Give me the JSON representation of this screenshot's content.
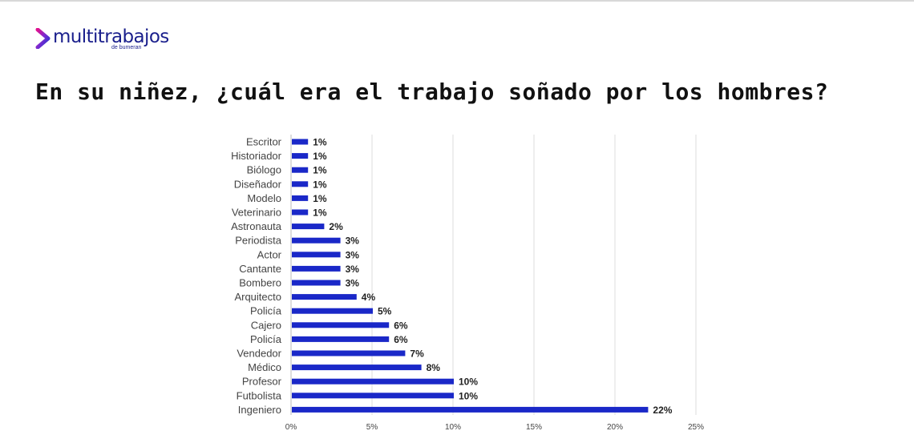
{
  "brand": {
    "name": "multitrabajos",
    "subtitle": "de bumeran",
    "color": "#1a1f8c",
    "accent": "#e0118f"
  },
  "page": {
    "title": "En su niñez, ¿cuál era el trabajo soñado por los hombres?"
  },
  "chart_data": {
    "type": "bar",
    "orientation": "horizontal",
    "title": "",
    "xlabel": "",
    "ylabel": "",
    "categories": [
      "Escritor",
      "Historiador",
      "Biólogo",
      "Diseñador",
      "Modelo",
      "Veterinario",
      "Astronauta",
      "Periodista",
      "Actor",
      "Cantante",
      "Bombero",
      "Arquitecto",
      "Policía",
      "Cajero",
      "Policía",
      "Vendedor",
      "Médico",
      "Profesor",
      "Futbolista",
      "Ingeniero"
    ],
    "values": [
      1,
      1,
      1,
      1,
      1,
      1,
      2,
      3,
      3,
      3,
      3,
      4,
      5,
      6,
      6,
      7,
      8,
      10,
      10,
      22
    ],
    "value_labels": [
      "1%",
      "1%",
      "1%",
      "1%",
      "1%",
      "1%",
      "2%",
      "3%",
      "3%",
      "3%",
      "3%",
      "4%",
      "5%",
      "6%",
      "6%",
      "7%",
      "8%",
      "10%",
      "10%",
      "22%"
    ],
    "xlim": [
      0,
      25
    ],
    "ticks": [
      0,
      5,
      10,
      15,
      20,
      25
    ],
    "tick_labels": [
      "0%",
      "5%",
      "10%",
      "15%",
      "20%",
      "25%"
    ],
    "grid": true,
    "bar_color": "#1a28c8",
    "grid_color": "#dddddd"
  }
}
